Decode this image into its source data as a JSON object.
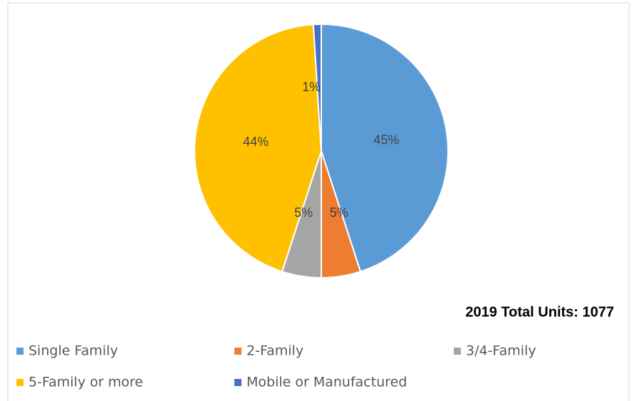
{
  "chart_data": {
    "type": "pie",
    "categories": [
      "Single Family",
      "2-Family",
      "3/4-Family",
      "5-Family or more",
      "Mobile or Manufactured"
    ],
    "values": [
      45,
      5,
      5,
      44,
      1
    ],
    "value_labels": [
      "45%",
      "5%",
      "5%",
      "44%",
      "1%"
    ],
    "colors": [
      "#5b9bd5",
      "#ed7d31",
      "#a5a5a5",
      "#ffc000",
      "#4472c4"
    ],
    "annotation": "2019 Total Units: 1077",
    "legend": "bottom"
  }
}
